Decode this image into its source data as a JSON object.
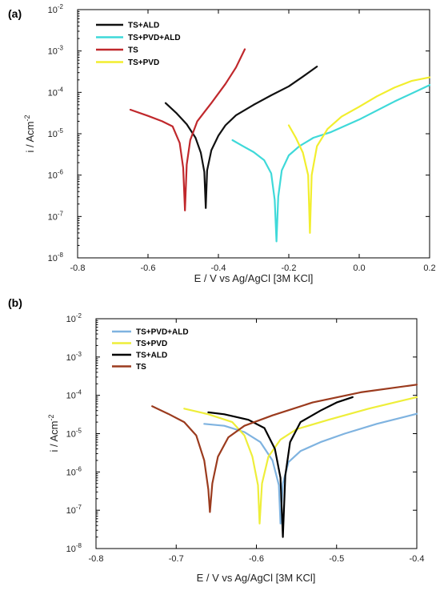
{
  "chart_data": [
    {
      "panel": "(a)",
      "type": "line",
      "xlabel": "E / V vs Ag/AgCl [3M KCl]",
      "ylabel": "i / Acm",
      "ylabel_sup": "-2",
      "xlim": [
        -0.8,
        0.2
      ],
      "ylim_log10": [
        -8,
        -2
      ],
      "y_scale": "log",
      "xticks": [
        -0.8,
        -0.6,
        -0.4,
        -0.2,
        0.0,
        0.2
      ],
      "xtick_labels": [
        "-0.8",
        "-0.6",
        "-0.4",
        "-0.2",
        "0.0",
        "0.2"
      ],
      "yticks_log10": [
        -8,
        -7,
        -6,
        -5,
        -4,
        -3,
        -2
      ],
      "ytick_base": "10",
      "legend_position": "top-left",
      "series": [
        {
          "name": "TS+ALD",
          "color": "#111111",
          "points": [
            [
              -0.55,
              5.5e-05
            ],
            [
              -0.52,
              3.2e-05
            ],
            [
              -0.49,
              1.7e-05
            ],
            [
              -0.465,
              8e-06
            ],
            [
              -0.45,
              3.5e-06
            ],
            [
              -0.44,
              1.2e-06
            ],
            [
              -0.436,
              1.6e-07
            ],
            [
              -0.432,
              1.3e-06
            ],
            [
              -0.42,
              4e-06
            ],
            [
              -0.4,
              9e-06
            ],
            [
              -0.38,
              1.6e-05
            ],
            [
              -0.35,
              2.8e-05
            ],
            [
              -0.3,
              5e-05
            ],
            [
              -0.25,
              8.5e-05
            ],
            [
              -0.2,
              0.00014
            ],
            [
              -0.16,
              0.00024
            ],
            [
              -0.12,
              0.00042
            ]
          ]
        },
        {
          "name": "TS+PVD+ALD",
          "color": "#3fd9d9",
          "points": [
            [
              -0.36,
              7e-06
            ],
            [
              -0.33,
              5e-06
            ],
            [
              -0.3,
              3.6e-06
            ],
            [
              -0.27,
              2.3e-06
            ],
            [
              -0.25,
              1.1e-06
            ],
            [
              -0.24,
              2.5e-07
            ],
            [
              -0.235,
              2.5e-08
            ],
            [
              -0.23,
              3e-07
            ],
            [
              -0.22,
              1.3e-06
            ],
            [
              -0.2,
              3e-06
            ],
            [
              -0.17,
              5e-06
            ],
            [
              -0.13,
              8e-06
            ],
            [
              -0.08,
              1.1e-05
            ],
            [
              0.0,
              2.2e-05
            ],
            [
              0.1,
              6e-05
            ],
            [
              0.2,
              0.00015
            ]
          ]
        },
        {
          "name": "TS",
          "color": "#c0282c",
          "points": [
            [
              -0.65,
              3.8e-05
            ],
            [
              -0.6,
              2.7e-05
            ],
            [
              -0.56,
              2e-05
            ],
            [
              -0.53,
              1.5e-05
            ],
            [
              -0.51,
              6e-06
            ],
            [
              -0.5,
              1.5e-06
            ],
            [
              -0.495,
              1.4e-07
            ],
            [
              -0.49,
              1.8e-06
            ],
            [
              -0.48,
              7e-06
            ],
            [
              -0.46,
              2e-05
            ],
            [
              -0.42,
              5.5e-05
            ],
            [
              -0.38,
              0.00016
            ],
            [
              -0.35,
              0.0004
            ],
            [
              -0.325,
              0.0011
            ]
          ]
        },
        {
          "name": "TS+PVD",
          "color": "#f2ee2e",
          "points": [
            [
              -0.2,
              1.6e-05
            ],
            [
              -0.18,
              8e-06
            ],
            [
              -0.16,
              3.5e-06
            ],
            [
              -0.145,
              1e-06
            ],
            [
              -0.14,
              4e-08
            ],
            [
              -0.135,
              1e-06
            ],
            [
              -0.12,
              5e-06
            ],
            [
              -0.09,
              1.3e-05
            ],
            [
              -0.05,
              2.6e-05
            ],
            [
              0.0,
              4.5e-05
            ],
            [
              0.05,
              8e-05
            ],
            [
              0.1,
              0.00013
            ],
            [
              0.15,
              0.00019
            ],
            [
              0.2,
              0.00023
            ]
          ]
        }
      ]
    },
    {
      "panel": "(b)",
      "type": "line",
      "xlabel": "E / V vs Ag/AgCl [3M KCl]",
      "ylabel": "i / Acm",
      "ylabel_sup": "-2",
      "xlim": [
        -0.8,
        -0.4
      ],
      "ylim_log10": [
        -8,
        -2
      ],
      "y_scale": "log",
      "xticks": [
        -0.8,
        -0.7,
        -0.6,
        -0.5,
        -0.4
      ],
      "xtick_labels": [
        "-0.8",
        "-0.7",
        "-0.6",
        "-0.5",
        "-0.4"
      ],
      "yticks_log10": [
        -8,
        -7,
        -6,
        -5,
        -4,
        -3,
        -2
      ],
      "ytick_base": "10",
      "legend_position": "top-left",
      "series": [
        {
          "name": "TS+PVD+ALD",
          "color": "#7fb3e0",
          "points": [
            [
              -0.665,
              1.8e-05
            ],
            [
              -0.64,
              1.6e-05
            ],
            [
              -0.615,
              1.1e-05
            ],
            [
              -0.595,
              6e-06
            ],
            [
              -0.58,
              2e-06
            ],
            [
              -0.572,
              4.5e-07
            ],
            [
              -0.57,
              4.5e-08
            ],
            [
              -0.567,
              5e-07
            ],
            [
              -0.56,
              1.8e-06
            ],
            [
              -0.545,
              3.5e-06
            ],
            [
              -0.52,
              6e-06
            ],
            [
              -0.49,
              1e-05
            ],
            [
              -0.45,
              1.8e-05
            ],
            [
              -0.4,
              3.3e-05
            ]
          ]
        },
        {
          "name": "TS+PVD",
          "color": "#eeee3a",
          "points": [
            [
              -0.69,
              4.5e-05
            ],
            [
              -0.66,
              3.2e-05
            ],
            [
              -0.63,
              2e-05
            ],
            [
              -0.615,
              9e-06
            ],
            [
              -0.605,
              2.5e-06
            ],
            [
              -0.598,
              4.5e-07
            ],
            [
              -0.596,
              4.5e-08
            ],
            [
              -0.593,
              5e-07
            ],
            [
              -0.585,
              2.5e-06
            ],
            [
              -0.57,
              7e-06
            ],
            [
              -0.55,
              1.3e-05
            ],
            [
              -0.51,
              2.3e-05
            ],
            [
              -0.46,
              4.5e-05
            ],
            [
              -0.4,
              9e-05
            ]
          ]
        },
        {
          "name": "TS+ALD",
          "color": "#000000",
          "points": [
            [
              -0.66,
              3.6e-05
            ],
            [
              -0.64,
              3.2e-05
            ],
            [
              -0.61,
              2.3e-05
            ],
            [
              -0.59,
              1.4e-05
            ],
            [
              -0.577,
              4e-06
            ],
            [
              -0.57,
              7e-07
            ],
            [
              -0.567,
              2e-08
            ],
            [
              -0.564,
              8e-07
            ],
            [
              -0.558,
              6e-06
            ],
            [
              -0.545,
              2e-05
            ],
            [
              -0.52,
              4e-05
            ],
            [
              -0.5,
              6.5e-05
            ],
            [
              -0.48,
              9e-05
            ]
          ]
        },
        {
          "name": "TS",
          "color": "#9b3b1e",
          "points": [
            [
              -0.73,
              5.2e-05
            ],
            [
              -0.71,
              3.3e-05
            ],
            [
              -0.69,
              2e-05
            ],
            [
              -0.675,
              9e-06
            ],
            [
              -0.665,
              2e-06
            ],
            [
              -0.66,
              3.5e-07
            ],
            [
              -0.658,
              9e-08
            ],
            [
              -0.655,
              5e-07
            ],
            [
              -0.648,
              2.5e-06
            ],
            [
              -0.635,
              8e-06
            ],
            [
              -0.615,
              1.6e-05
            ],
            [
              -0.58,
              3e-05
            ],
            [
              -0.53,
              6.5e-05
            ],
            [
              -0.47,
              0.00012
            ],
            [
              -0.4,
              0.00019
            ]
          ]
        }
      ]
    }
  ]
}
